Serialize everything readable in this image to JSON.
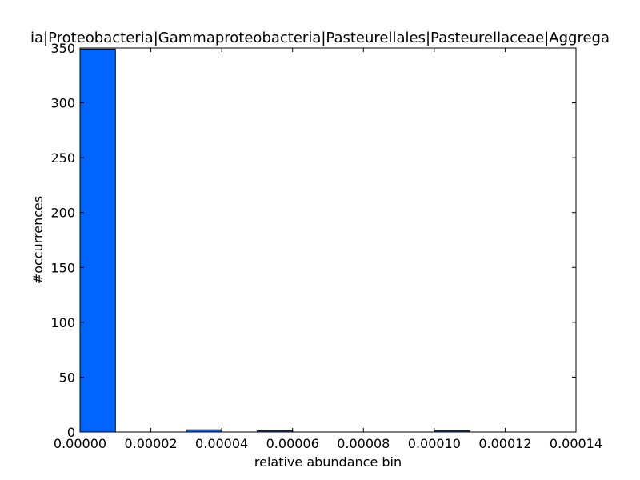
{
  "chart_data": {
    "type": "bar",
    "title": "ia|Proteobacteria|Gammaproteobacteria|Pasteurellales|Pasteurellaceae|Aggrega",
    "xlabel": "relative abundance bin",
    "ylabel": "#occurrences",
    "xlim": [
      0,
      0.00014
    ],
    "ylim": [
      0,
      350
    ],
    "xticks": [
      "0.00000",
      "0.00002",
      "0.00004",
      "0.00006",
      "0.00008",
      "0.00010",
      "0.00012",
      "0.00014"
    ],
    "yticks": [
      "0",
      "50",
      "100",
      "150",
      "200",
      "250",
      "300",
      "350"
    ],
    "bins": [
      {
        "x0": 0.0,
        "x1": 1e-05,
        "count": 349
      },
      {
        "x0": 3e-05,
        "x1": 4e-05,
        "count": 2
      },
      {
        "x0": 5e-05,
        "x1": 6e-05,
        "count": 1
      },
      {
        "x0": 0.0001,
        "x1": 0.00011,
        "count": 1
      }
    ],
    "bar_color": "#0066ff",
    "grid": false
  }
}
